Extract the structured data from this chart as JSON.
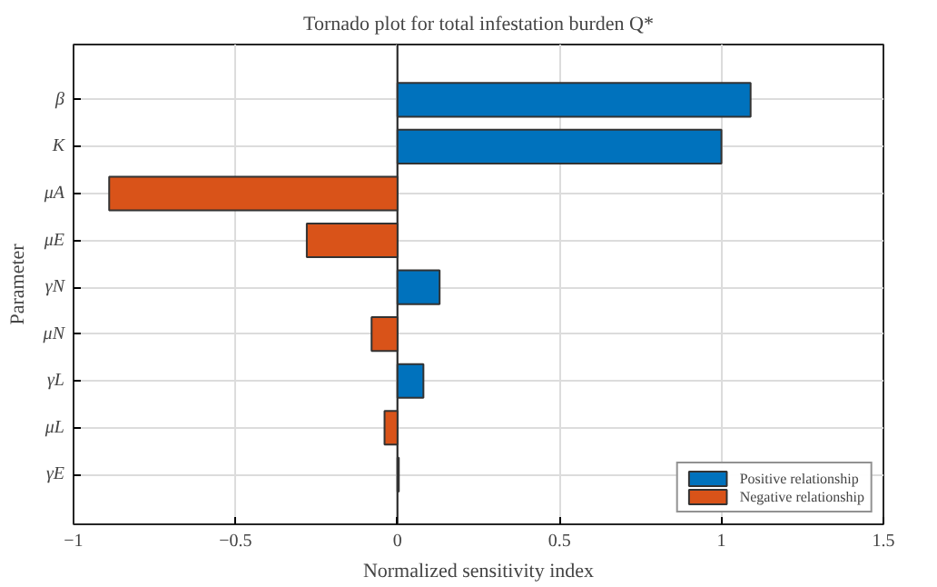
{
  "chart_data": {
    "type": "bar",
    "orientation": "horizontal",
    "title": "Tornado plot for total infestation burden Q*",
    "xlabel": "Normalized sensitivity index",
    "ylabel": "Parameter",
    "categories": [
      "β",
      "K",
      "μA",
      "μE",
      "γN",
      "μN",
      "γL",
      "μL",
      "γE"
    ],
    "series": [
      {
        "name": "Positive relationship",
        "color": "#0072bd",
        "values": [
          1.09,
          1.0,
          null,
          null,
          0.13,
          null,
          0.08,
          null,
          0.004
        ]
      },
      {
        "name": "Negative relationship",
        "color": "#d95319",
        "values": [
          null,
          null,
          -0.89,
          -0.28,
          null,
          -0.08,
          null,
          -0.04,
          null
        ]
      }
    ],
    "xlim": [
      -1,
      1.5
    ],
    "xticks": [
      -1,
      -0.5,
      0,
      0.5,
      1,
      1.5
    ],
    "grid": true,
    "legend": "bottom right"
  }
}
